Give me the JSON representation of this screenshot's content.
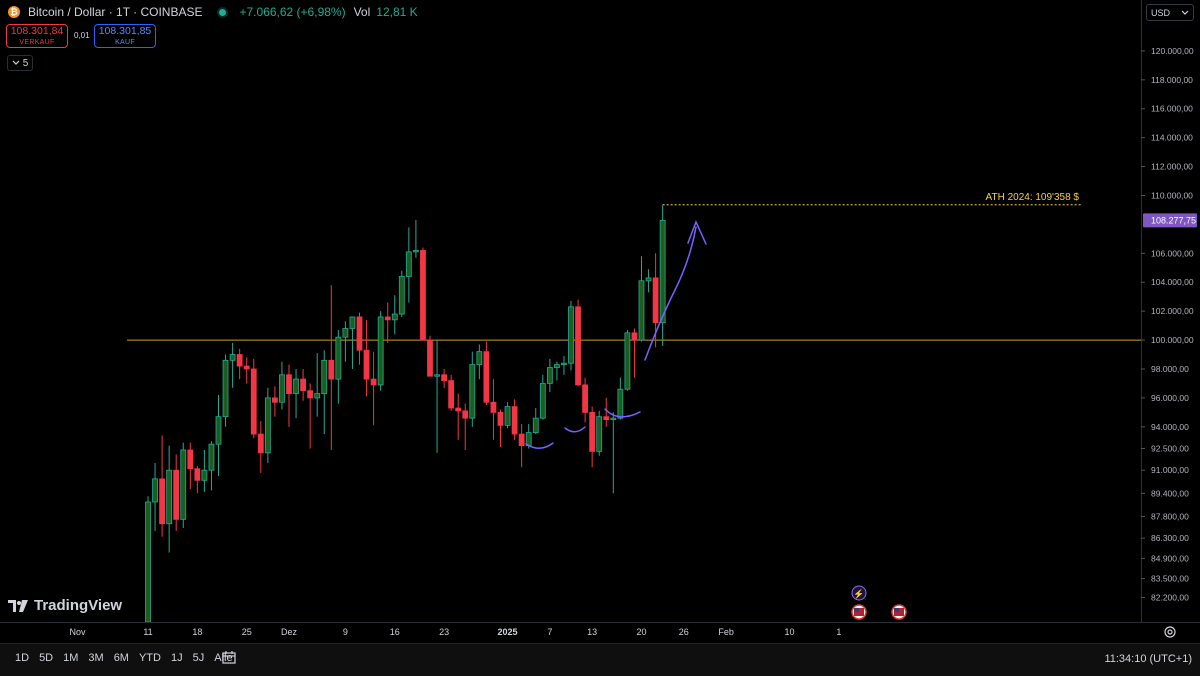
{
  "header": {
    "symbol": "Bitcoin / Dollar · 1T · COINBASE",
    "logo_letter": "₿",
    "change": "+7.066,62 (+6,98%)",
    "vol_label": "Vol",
    "vol_value": "12,81 K"
  },
  "quotes": {
    "sell_price": "108.301,84",
    "sell_label": "VERKAUF",
    "spread": "0,01",
    "buy_price": "108.301,85",
    "buy_label": "KAUF"
  },
  "indicator_toggle": {
    "count": "5",
    "icon": "chevron-down-icon"
  },
  "currency": {
    "selected": "USD"
  },
  "brand": {
    "name": "TradingView"
  },
  "colors": {
    "up": "#22ab94",
    "down": "#f23645",
    "up_fill": "#1b5e20",
    "level": "#c9a227",
    "ath": "#f5d142",
    "drawing": "#7b61ff",
    "price_tag": "#7e57c2"
  },
  "bottom_bar": {
    "ranges": [
      "1D",
      "5D",
      "1M",
      "3M",
      "6M",
      "YTD",
      "1J",
      "5J",
      "Alle"
    ],
    "clock": "11:34:10 (UTC+1)"
  },
  "chart_data": {
    "type": "candlestick",
    "ylim": [
      80500,
      122000
    ],
    "y_ticks": [
      {
        "v": 120000,
        "l": "120.000,00"
      },
      {
        "v": 118000,
        "l": "118.000,00"
      },
      {
        "v": 116000,
        "l": "116.000,00"
      },
      {
        "v": 114000,
        "l": "114.000,00"
      },
      {
        "v": 112000,
        "l": "112.000,00"
      },
      {
        "v": 110000,
        "l": "110.000,00"
      },
      {
        "v": 106000,
        "l": "106.000,00"
      },
      {
        "v": 104000,
        "l": "104.000,00"
      },
      {
        "v": 102000,
        "l": "102.000,00"
      },
      {
        "v": 100000,
        "l": "100.000,00"
      },
      {
        "v": 98000,
        "l": "98.000,00"
      },
      {
        "v": 96000,
        "l": "96.000,00"
      },
      {
        "v": 94000,
        "l": "94.000,00"
      },
      {
        "v": 92500,
        "l": "92.500,00"
      },
      {
        "v": 91000,
        "l": "91.000,00"
      },
      {
        "v": 89400,
        "l": "89.400,00"
      },
      {
        "v": 87800,
        "l": "87.800,00"
      },
      {
        "v": 86300,
        "l": "86.300,00"
      },
      {
        "v": 84900,
        "l": "84.900,00"
      },
      {
        "v": 83500,
        "l": "83.500,00"
      },
      {
        "v": 82200,
        "l": "82.200,00"
      }
    ],
    "x_ticks": [
      {
        "d": -10,
        "l": "Nov",
        "bold": false
      },
      {
        "d": 0,
        "l": "11",
        "bold": false
      },
      {
        "d": 7,
        "l": "18",
        "bold": false
      },
      {
        "d": 14,
        "l": "25",
        "bold": false
      },
      {
        "d": 20,
        "l": "Dez",
        "bold": false
      },
      {
        "d": 28,
        "l": "9",
        "bold": false
      },
      {
        "d": 35,
        "l": "16",
        "bold": false
      },
      {
        "d": 42,
        "l": "23",
        "bold": false
      },
      {
        "d": 51,
        "l": "2025",
        "bold": true
      },
      {
        "d": 57,
        "l": "7",
        "bold": false
      },
      {
        "d": 63,
        "l": "13",
        "bold": false
      },
      {
        "d": 70,
        "l": "20",
        "bold": false
      },
      {
        "d": 76,
        "l": "26",
        "bold": false
      },
      {
        "d": 82,
        "l": "Feb",
        "bold": false
      },
      {
        "d": 91,
        "l": "10",
        "bold": false
      },
      {
        "d": 98,
        "l": "1",
        "bold": false
      }
    ],
    "candles": [
      {
        "o": 80500,
        "h": 89200,
        "l": 80500,
        "c": 88800
      },
      {
        "o": 88800,
        "h": 91500,
        "l": 86800,
        "c": 90400
      },
      {
        "o": 90400,
        "h": 93400,
        "l": 86400,
        "c": 87300
      },
      {
        "o": 87300,
        "h": 92700,
        "l": 85300,
        "c": 91000
      },
      {
        "o": 91000,
        "h": 92100,
        "l": 86800,
        "c": 87600
      },
      {
        "o": 87600,
        "h": 92900,
        "l": 87000,
        "c": 92400
      },
      {
        "o": 92400,
        "h": 92900,
        "l": 89700,
        "c": 91100
      },
      {
        "o": 91100,
        "h": 91300,
        "l": 89400,
        "c": 90300
      },
      {
        "o": 90300,
        "h": 92400,
        "l": 89500,
        "c": 91000
      },
      {
        "o": 91000,
        "h": 93000,
        "l": 89600,
        "c": 92800
      },
      {
        "o": 92800,
        "h": 96200,
        "l": 90600,
        "c": 94700
      },
      {
        "o": 94700,
        "h": 99000,
        "l": 94000,
        "c": 98600
      },
      {
        "o": 98600,
        "h": 99800,
        "l": 96700,
        "c": 99000
      },
      {
        "o": 99000,
        "h": 99400,
        "l": 97300,
        "c": 98200
      },
      {
        "o": 98200,
        "h": 98800,
        "l": 97000,
        "c": 98000
      },
      {
        "o": 98000,
        "h": 98700,
        "l": 93200,
        "c": 93500
      },
      {
        "o": 93500,
        "h": 94400,
        "l": 90800,
        "c": 92200
      },
      {
        "o": 92200,
        "h": 96700,
        "l": 91500,
        "c": 96000
      },
      {
        "o": 96000,
        "h": 96800,
        "l": 94700,
        "c": 95700
      },
      {
        "o": 95700,
        "h": 98500,
        "l": 95200,
        "c": 97600
      },
      {
        "o": 97600,
        "h": 98300,
        "l": 94000,
        "c": 96300
      },
      {
        "o": 96300,
        "h": 98000,
        "l": 94600,
        "c": 97300
      },
      {
        "o": 97300,
        "h": 98000,
        "l": 95800,
        "c": 96500
      },
      {
        "o": 96500,
        "h": 97000,
        "l": 92500,
        "c": 96000
      },
      {
        "o": 96000,
        "h": 99100,
        "l": 94700,
        "c": 96300
      },
      {
        "o": 96300,
        "h": 99300,
        "l": 93500,
        "c": 98600
      },
      {
        "o": 98600,
        "h": 103800,
        "l": 92400,
        "c": 97300
      },
      {
        "o": 97300,
        "h": 100700,
        "l": 95600,
        "c": 100200
      },
      {
        "o": 100200,
        "h": 101300,
        "l": 98500,
        "c": 100800
      },
      {
        "o": 100800,
        "h": 101500,
        "l": 98000,
        "c": 101600
      },
      {
        "o": 101600,
        "h": 101900,
        "l": 98300,
        "c": 99300
      },
      {
        "o": 99300,
        "h": 101400,
        "l": 96100,
        "c": 97300
      },
      {
        "o": 97300,
        "h": 99200,
        "l": 94100,
        "c": 96900
      },
      {
        "o": 96900,
        "h": 102000,
        "l": 96500,
        "c": 101600
      },
      {
        "o": 101600,
        "h": 102600,
        "l": 99800,
        "c": 101400
      },
      {
        "o": 101400,
        "h": 103100,
        "l": 100400,
        "c": 101800
      },
      {
        "o": 101800,
        "h": 104800,
        "l": 101600,
        "c": 104400
      },
      {
        "o": 104400,
        "h": 107800,
        "l": 102600,
        "c": 106100
      },
      {
        "o": 106100,
        "h": 108300,
        "l": 105700,
        "c": 106200
      },
      {
        "o": 106200,
        "h": 106400,
        "l": 100000,
        "c": 100000
      },
      {
        "o": 100000,
        "h": 100300,
        "l": 97500,
        "c": 97500
      },
      {
        "o": 97500,
        "h": 100000,
        "l": 92200,
        "c": 97600
      },
      {
        "o": 97600,
        "h": 98000,
        "l": 96700,
        "c": 97200
      },
      {
        "o": 97200,
        "h": 97600,
        "l": 95100,
        "c": 95300
      },
      {
        "o": 95300,
        "h": 96300,
        "l": 93100,
        "c": 95100
      },
      {
        "o": 95100,
        "h": 95600,
        "l": 92400,
        "c": 94600
      },
      {
        "o": 94600,
        "h": 99200,
        "l": 94000,
        "c": 98300
      },
      {
        "o": 98300,
        "h": 99700,
        "l": 97300,
        "c": 99200
      },
      {
        "o": 99200,
        "h": 99900,
        "l": 95500,
        "c": 95700
      },
      {
        "o": 95700,
        "h": 97300,
        "l": 93100,
        "c": 95000
      },
      {
        "o": 95000,
        "h": 95200,
        "l": 92600,
        "c": 94100
      },
      {
        "o": 94100,
        "h": 95700,
        "l": 93900,
        "c": 95400
      },
      {
        "o": 95400,
        "h": 95900,
        "l": 93100,
        "c": 93500
      },
      {
        "o": 93500,
        "h": 94200,
        "l": 91200,
        "c": 92700
      },
      {
        "o": 92700,
        "h": 94200,
        "l": 92500,
        "c": 93600
      },
      {
        "o": 93600,
        "h": 95300,
        "l": 93500,
        "c": 94600
      },
      {
        "o": 94600,
        "h": 97600,
        "l": 94500,
        "c": 97000
      },
      {
        "o": 97000,
        "h": 98700,
        "l": 96400,
        "c": 98100
      },
      {
        "o": 98100,
        "h": 98500,
        "l": 97200,
        "c": 98300
      },
      {
        "o": 98300,
        "h": 98900,
        "l": 97600,
        "c": 98400
      },
      {
        "o": 98400,
        "h": 102700,
        "l": 97900,
        "c": 102300
      },
      {
        "o": 102300,
        "h": 102800,
        "l": 96800,
        "c": 96900
      },
      {
        "o": 96900,
        "h": 97400,
        "l": 94300,
        "c": 95000
      },
      {
        "o": 95000,
        "h": 95400,
        "l": 91200,
        "c": 92300
      },
      {
        "o": 92300,
        "h": 95100,
        "l": 92000,
        "c": 94700
      },
      {
        "o": 94700,
        "h": 96000,
        "l": 94000,
        "c": 94500
      },
      {
        "o": 94500,
        "h": 95000,
        "l": 89400,
        "c": 94600
      },
      {
        "o": 94600,
        "h": 97400,
        "l": 94500,
        "c": 96600
      },
      {
        "o": 96600,
        "h": 100700,
        "l": 96500,
        "c": 100500
      },
      {
        "o": 100500,
        "h": 100800,
        "l": 97400,
        "c": 100000
      },
      {
        "o": 100000,
        "h": 105800,
        "l": 99900,
        "c": 104100
      },
      {
        "o": 104100,
        "h": 104900,
        "l": 103300,
        "c": 104300
      },
      {
        "o": 104300,
        "h": 106000,
        "l": 99500,
        "c": 101200
      },
      {
        "o": 101200,
        "h": 109358,
        "l": 99600,
        "c": 108277.75
      }
    ],
    "last_price_label": "108.277,75",
    "ath": {
      "value": 109358,
      "label": "ATH 2024: 109'358 $"
    },
    "level_line": 100000
  }
}
